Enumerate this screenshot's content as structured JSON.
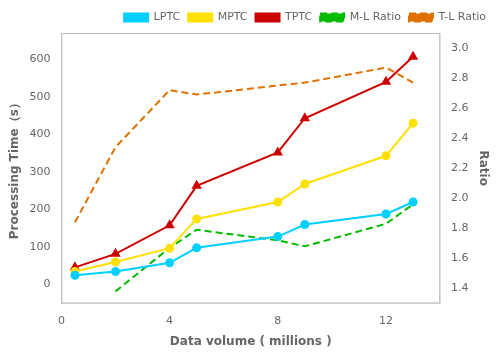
{
  "chart_data": {
    "type": "line",
    "xlabel": "Data volume ( millions )",
    "ylabel": "Processing Time（s）",
    "y2label": "Ratio",
    "x": [
      0.5,
      2,
      4,
      5,
      8,
      9,
      12,
      13
    ],
    "series": [
      {
        "name": "LPTC",
        "color": "#00CFFF",
        "marker": "circle",
        "line_style": "solid",
        "values": [
          25,
          35,
          58,
          98,
          128,
          160,
          188,
          220
        ]
      },
      {
        "name": "MPTC",
        "color": "#FFE000",
        "marker": "circle",
        "line_style": "solid",
        "values": [
          35,
          60,
          97,
          175,
          220,
          268,
          343,
          430
        ]
      },
      {
        "name": "TPTC",
        "color": "#CC0000",
        "marker": "triangle",
        "line_style": "solid",
        "values": [
          46,
          82,
          158,
          263,
          352,
          443,
          540,
          607
        ]
      },
      {
        "name": "M-L Ratio",
        "color": "#00BB00",
        "marker": "none",
        "line_style": "dashed",
        "axis": "y2",
        "values": [
          null,
          1.38,
          1.67,
          1.79,
          1.72,
          1.68,
          1.83,
          1.96
        ]
      },
      {
        "name": "T-L Ratio",
        "color": "#E07000",
        "marker": "none",
        "line_style": "dashed",
        "axis": "y2",
        "values": [
          1.84,
          2.34,
          2.72,
          2.69,
          2.75,
          2.77,
          2.87,
          2.77
        ]
      }
    ],
    "xlim": [
      0,
      14
    ],
    "xticks": [
      0,
      4,
      8,
      12
    ],
    "ylim": [
      -50,
      670
    ],
    "yticks": [
      0,
      100,
      200,
      300,
      400,
      500,
      600
    ],
    "y2lim": [
      1.3,
      3.1
    ],
    "y2ticks": [
      1.4,
      1.6,
      1.8,
      {
        "value": 2,
        "label": "2.0"
      },
      2.2,
      2.4,
      2.6,
      2.8,
      {
        "value": 3,
        "label": "3.0"
      }
    ],
    "grid": false,
    "legend": "upper right"
  }
}
